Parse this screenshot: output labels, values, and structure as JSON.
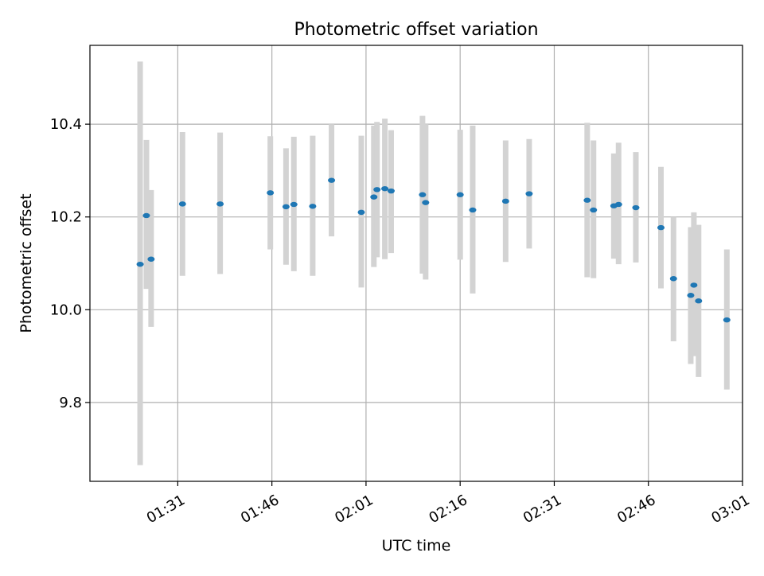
{
  "chart_data": {
    "type": "scatter",
    "title": "Photometric offset variation",
    "xlabel": "UTC time",
    "ylabel": "Photometric offset",
    "grid": true,
    "legend": "none",
    "x_is_time": true,
    "xlim": [
      "01:17",
      "03:01"
    ],
    "ylim": [
      9.63,
      10.57
    ],
    "x_ticks": [
      "01:31",
      "01:46",
      "02:01",
      "02:16",
      "02:31",
      "02:46",
      "03:01"
    ],
    "y_ticks": [
      9.8,
      10.0,
      10.2,
      10.4
    ],
    "y_tick_labels": [
      "9.8",
      "10.0",
      "10.2",
      "10.4"
    ],
    "colors": {
      "marker": "#1f77b4",
      "errorbar": "#d3d3d3",
      "grid": "#b0b0b0"
    },
    "series": [
      {
        "x": [
          "01:25:00",
          "01:26:00",
          "01:26:45",
          "01:31:45",
          "01:37:45",
          "01:45:45",
          "01:48:15",
          "01:49:30",
          "01:52:30",
          "01:55:30",
          "02:00:15",
          "02:02:15",
          "02:02:45",
          "02:04:00",
          "02:05:00",
          "02:10:00",
          "02:10:30",
          "02:16:00",
          "02:18:00",
          "02:23:15",
          "02:27:00",
          "02:36:15",
          "02:37:15",
          "02:40:30",
          "02:41:15",
          "02:44:00",
          "02:48:00",
          "02:50:00",
          "02:52:45",
          "02:53:15",
          "02:54:00",
          "02:58:30"
        ],
        "y": [
          10.098,
          10.203,
          10.109,
          10.228,
          10.228,
          10.252,
          10.222,
          10.227,
          10.223,
          10.279,
          10.21,
          10.243,
          10.259,
          10.261,
          10.256,
          10.248,
          10.231,
          10.248,
          10.215,
          10.234,
          10.25,
          10.236,
          10.215,
          10.224,
          10.227,
          10.22,
          10.177,
          10.067,
          10.031,
          10.053,
          10.019,
          9.978
        ],
        "yerr_low": [
          9.665,
          10.045,
          9.963,
          10.073,
          10.077,
          10.13,
          10.097,
          10.083,
          10.073,
          10.158,
          10.048,
          10.092,
          10.113,
          10.109,
          10.122,
          10.078,
          10.065,
          10.108,
          10.035,
          10.103,
          10.132,
          10.07,
          10.068,
          10.11,
          10.098,
          10.102,
          10.046,
          9.932,
          9.883,
          9.9,
          9.855,
          9.828
        ],
        "yerr_high": [
          10.535,
          10.366,
          10.258,
          10.383,
          10.382,
          10.374,
          10.348,
          10.373,
          10.375,
          10.4,
          10.375,
          10.397,
          10.405,
          10.412,
          10.387,
          10.418,
          10.4,
          10.388,
          10.397,
          10.365,
          10.368,
          10.403,
          10.365,
          10.337,
          10.36,
          10.34,
          10.308,
          10.2,
          10.178,
          10.21,
          10.183,
          10.13
        ]
      }
    ]
  }
}
